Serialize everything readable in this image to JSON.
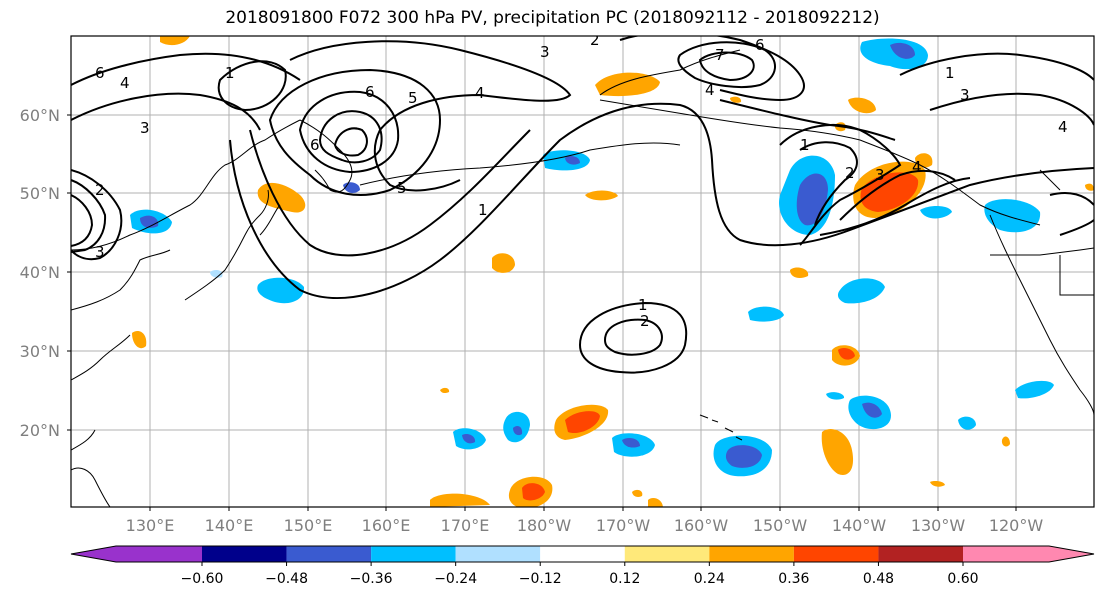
{
  "title": "2018091800 F072 300 hPa PV, precipitation PC (2018092112 - 2018092212)",
  "lat_labels": [
    "60°N",
    "50°N",
    "40°N",
    "30°N",
    "20°N"
  ],
  "lon_labels": [
    "130°E",
    "140°E",
    "150°E",
    "160°E",
    "170°E",
    "180°W",
    "170°W",
    "160°W",
    "150°W",
    "140°W",
    "130°W",
    "120°W"
  ],
  "colorbar": {
    "colors": [
      "#9932cc",
      "#00008b",
      "#3a5bd0",
      "#00bfff",
      "#b0e0ff",
      "#ffffff",
      "#ffe97a",
      "#ffa500",
      "#ff4500",
      "#b22222",
      "#ff88b0"
    ],
    "labels": [
      "-0.60",
      "-0.48",
      "-0.36",
      "-0.24",
      "-0.12",
      "0.12",
      "0.24",
      "0.36",
      "0.48",
      "0.60"
    ]
  },
  "contour_labels": [
    "1",
    "2",
    "3",
    "4",
    "5",
    "6",
    "7"
  ]
}
